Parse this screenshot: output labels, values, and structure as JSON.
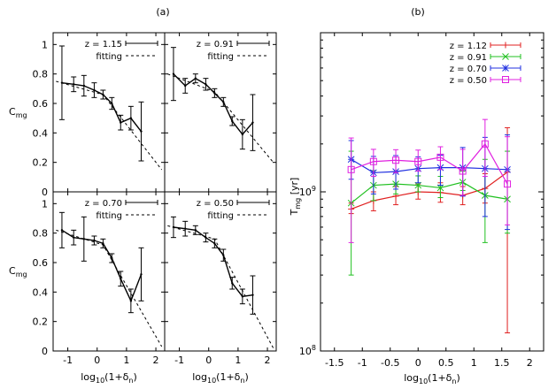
{
  "chart_data": [
    {
      "panel": "(a)",
      "type": "line",
      "xlabel": "log10(1+δn)",
      "ylabel": "Cmg",
      "xlim": [
        -1.5,
        2.3
      ],
      "ylim": [
        0,
        1.08
      ],
      "xticks": [
        -1,
        0,
        1,
        2
      ],
      "yticks": [
        0,
        0.2,
        0.4,
        0.6,
        0.8,
        1
      ],
      "legend_placement": "top-right",
      "fit_label": "fitting",
      "subplots": [
        {
          "name": "z = 1.15",
          "x": [
            -1.2,
            -0.8,
            -0.45,
            -0.1,
            0.2,
            0.5,
            0.8,
            1.15,
            1.5
          ],
          "y": [
            0.74,
            0.73,
            0.72,
            0.69,
            0.66,
            0.6,
            0.47,
            0.5,
            0.41
          ],
          "yerr": [
            0.25,
            0.05,
            0.07,
            0.05,
            0.03,
            0.04,
            0.05,
            0.08,
            0.2
          ],
          "fit": {
            "x": [
              -1.4,
              0.2,
              2.2
            ],
            "y": [
              0.75,
              0.66,
              0.15
            ]
          }
        },
        {
          "name": "z = 0.91",
          "x": [
            -1.2,
            -0.8,
            -0.45,
            -0.1,
            0.2,
            0.5,
            0.8,
            1.15,
            1.5
          ],
          "y": [
            0.8,
            0.72,
            0.77,
            0.73,
            0.67,
            0.61,
            0.48,
            0.39,
            0.47
          ],
          "yerr": [
            0.18,
            0.05,
            0.03,
            0.04,
            0.03,
            0.03,
            0.03,
            0.1,
            0.19
          ],
          "fit": {
            "x": [
              -1.4,
              0.2,
              2.2
            ],
            "y": [
              0.8,
              0.68,
              0.2
            ]
          }
        },
        {
          "name": "z = 0.70",
          "x": [
            -1.2,
            -0.8,
            -0.45,
            -0.1,
            0.2,
            0.5,
            0.8,
            1.15,
            1.5
          ],
          "y": [
            0.82,
            0.77,
            0.76,
            0.75,
            0.73,
            0.63,
            0.49,
            0.34,
            0.52
          ],
          "yerr": [
            0.12,
            0.05,
            0.15,
            0.03,
            0.03,
            0.03,
            0.05,
            0.08,
            0.18
          ],
          "fit": {
            "x": [
              -1.4,
              0.2,
              2.2
            ],
            "y": [
              0.82,
              0.72,
              0.03
            ]
          }
        },
        {
          "name": "z = 0.50",
          "x": [
            -1.2,
            -0.8,
            -0.45,
            -0.1,
            0.2,
            0.5,
            0.8,
            1.15,
            1.5
          ],
          "y": [
            0.84,
            0.83,
            0.82,
            0.77,
            0.73,
            0.65,
            0.46,
            0.37,
            0.38
          ],
          "yerr": [
            0.07,
            0.05,
            0.03,
            0.03,
            0.03,
            0.04,
            0.04,
            0.05,
            0.13
          ],
          "fit": {
            "x": [
              -1.4,
              0.2,
              2.2
            ],
            "y": [
              0.85,
              0.76,
              0.02
            ]
          }
        }
      ]
    },
    {
      "panel": "(b)",
      "type": "line",
      "xlabel": "log10(1+δn)",
      "ylabel": "Tmg [yr]",
      "xlim": [
        -1.75,
        2.25
      ],
      "ylim": [
        100000000.0,
        10000000000.0
      ],
      "yscale": "log",
      "xticks": [
        -1.5,
        -1,
        -0.5,
        0,
        0.5,
        1,
        1.5,
        2
      ],
      "xticklabels": [
        "-1.5",
        "-1",
        "-0.5",
        "0",
        "0.5",
        "1",
        "1.5",
        "2"
      ],
      "yticks": [
        100000000.0,
        1000000000.0
      ],
      "yticklabels": [
        "10^8",
        "10^9"
      ],
      "legend_placement": "top-right",
      "grid": false,
      "x": [
        -1.2,
        -0.8,
        -0.4,
        0.0,
        0.4,
        0.8,
        1.2,
        1.6
      ],
      "series": [
        {
          "name": "z = 1.12",
          "color": "#e02020",
          "marker": "plus",
          "y": [
            780000000.0,
            880000000.0,
            940000000.0,
            1000000000.0,
            990000000.0,
            950000000.0,
            1050000000.0,
            1330000000.0
          ],
          "err_lo": [
            50000000.0,
            120000000.0,
            110000000.0,
            100000000.0,
            130000000.0,
            120000000.0,
            200000000.0,
            1200000000.0
          ],
          "err_hi": [
            70000000.0,
            120000000.0,
            140000000.0,
            120000000.0,
            150000000.0,
            130000000.0,
            250000000.0,
            1200000000.0
          ]
        },
        {
          "name": "z = 0.91",
          "color": "#20c020",
          "marker": "cross",
          "y": [
            850000000.0,
            1100000000.0,
            1120000000.0,
            1100000000.0,
            1060000000.0,
            1150000000.0,
            950000000.0,
            900000000.0
          ],
          "err_lo": [
            550000000.0,
            220000000.0,
            150000000.0,
            100000000.0,
            140000000.0,
            130000000.0,
            470000000.0,
            350000000.0
          ],
          "err_hi": [
            950000000.0,
            260000000.0,
            220000000.0,
            160000000.0,
            190000000.0,
            200000000.0,
            650000000.0,
            900000000.0
          ]
        },
        {
          "name": "z = 0.70",
          "color": "#2030e0",
          "marker": "star",
          "y": [
            1600000000.0,
            1320000000.0,
            1340000000.0,
            1400000000.0,
            1420000000.0,
            1420000000.0,
            1400000000.0,
            1380000000.0
          ],
          "err_lo": [
            400000000.0,
            350000000.0,
            300000000.0,
            260000000.0,
            320000000.0,
            480000000.0,
            700000000.0,
            800000000.0
          ],
          "err_hi": [
            500000000.0,
            350000000.0,
            350000000.0,
            260000000.0,
            280000000.0,
            480000000.0,
            800000000.0,
            900000000.0
          ]
        },
        {
          "name": "z = 0.50",
          "color": "#e020e0",
          "marker": "square",
          "y": [
            1380000000.0,
            1550000000.0,
            1580000000.0,
            1550000000.0,
            1650000000.0,
            1350000000.0,
            2000000000.0,
            1120000000.0
          ],
          "err_lo": [
            900000000.0,
            300000000.0,
            260000000.0,
            200000000.0,
            270000000.0,
            400000000.0,
            750000000.0,
            500000000.0
          ],
          "err_hi": [
            800000000.0,
            300000000.0,
            260000000.0,
            280000000.0,
            270000000.0,
            500000000.0,
            850000000.0,
            1100000000.0
          ]
        }
      ]
    }
  ]
}
